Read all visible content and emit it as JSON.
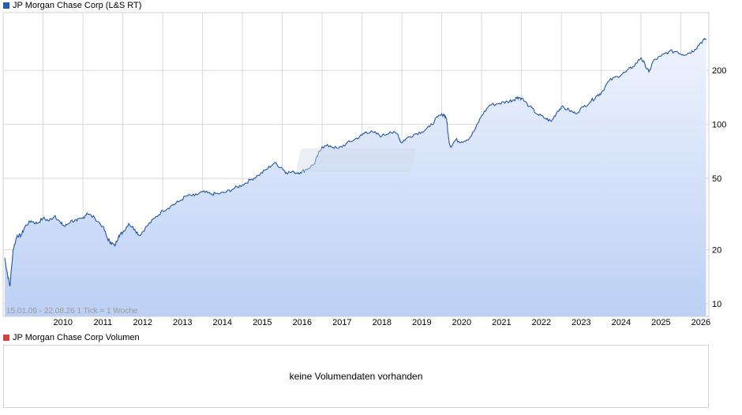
{
  "price_legend": {
    "label": "JP Morgan Chase Corp (L&S RT)",
    "color": "#2a5ab0"
  },
  "volume_legend": {
    "label": "JP Morgan Chase Corp Volumen",
    "color": "#cc4444"
  },
  "range_label": "15.01.09 - 22.08.26   1 Tick = 1 Woche",
  "volume_message": "keine Volumendaten vorhanden",
  "colors": {
    "line": "#2255a8",
    "fill_top": "#eef3fd",
    "fill_bottom": "#bcd0f5",
    "grid": "#d9d9d9"
  },
  "chart_data": {
    "type": "area",
    "title": "JP Morgan Chase Corp (L&S RT)",
    "x_range": [
      "15.01.09",
      "22.08.26"
    ],
    "y_scale": "log",
    "ylim": [
      8.5,
      420
    ],
    "y_ticks": [
      10,
      20,
      50,
      100,
      200
    ],
    "x_ticks": [
      "2010",
      "2011",
      "2012",
      "2013",
      "2014",
      "2015",
      "2016",
      "2017",
      "2018",
      "2019",
      "2020",
      "2021",
      "2022",
      "2023",
      "2024",
      "2025",
      "2026"
    ],
    "grid": true,
    "series": [
      {
        "values": [
          [
            2009.04,
            18
          ],
          [
            2009.1,
            15
          ],
          [
            2009.17,
            12.5
          ],
          [
            2009.25,
            20
          ],
          [
            2009.35,
            24
          ],
          [
            2009.45,
            24
          ],
          [
            2009.55,
            27
          ],
          [
            2009.7,
            29
          ],
          [
            2009.85,
            28
          ],
          [
            2010.0,
            30
          ],
          [
            2010.15,
            29
          ],
          [
            2010.3,
            31
          ],
          [
            2010.45,
            28
          ],
          [
            2010.55,
            27
          ],
          [
            2010.7,
            29
          ],
          [
            2010.85,
            29
          ],
          [
            2011.0,
            30
          ],
          [
            2011.1,
            32
          ],
          [
            2011.3,
            30
          ],
          [
            2011.5,
            27
          ],
          [
            2011.62,
            23
          ],
          [
            2011.7,
            22
          ],
          [
            2011.8,
            21
          ],
          [
            2011.9,
            24
          ],
          [
            2012.0,
            25
          ],
          [
            2012.15,
            28
          ],
          [
            2012.3,
            26
          ],
          [
            2012.42,
            24
          ],
          [
            2012.6,
            27
          ],
          [
            2012.8,
            30
          ],
          [
            2013.0,
            33
          ],
          [
            2013.2,
            35
          ],
          [
            2013.4,
            37
          ],
          [
            2013.6,
            40
          ],
          [
            2013.8,
            40
          ],
          [
            2014.0,
            42
          ],
          [
            2014.2,
            41
          ],
          [
            2014.4,
            41
          ],
          [
            2014.6,
            42
          ],
          [
            2014.8,
            44
          ],
          [
            2015.0,
            46
          ],
          [
            2015.2,
            49
          ],
          [
            2015.4,
            52
          ],
          [
            2015.6,
            56
          ],
          [
            2015.8,
            61
          ],
          [
            2016.0,
            57
          ],
          [
            2016.1,
            54
          ],
          [
            2016.3,
            54
          ],
          [
            2016.45,
            54
          ],
          [
            2016.6,
            56
          ],
          [
            2016.8,
            60
          ],
          [
            2016.9,
            68
          ],
          [
            2017.0,
            75
          ],
          [
            2017.2,
            76
          ],
          [
            2017.4,
            73
          ],
          [
            2017.6,
            78
          ],
          [
            2017.8,
            82
          ],
          [
            2018.0,
            87
          ],
          [
            2018.1,
            91
          ],
          [
            2018.3,
            90
          ],
          [
            2018.5,
            86
          ],
          [
            2018.7,
            91
          ],
          [
            2018.9,
            88
          ],
          [
            2018.98,
            79
          ],
          [
            2019.1,
            83
          ],
          [
            2019.3,
            88
          ],
          [
            2019.5,
            91
          ],
          [
            2019.7,
            97
          ],
          [
            2019.9,
            110
          ],
          [
            2020.05,
            114
          ],
          [
            2020.12,
            108
          ],
          [
            2020.17,
            84
          ],
          [
            2020.22,
            75
          ],
          [
            2020.35,
            82
          ],
          [
            2020.5,
            80
          ],
          [
            2020.7,
            84
          ],
          [
            2020.85,
            95
          ],
          [
            2021.0,
            112
          ],
          [
            2021.2,
            128
          ],
          [
            2021.45,
            131
          ],
          [
            2021.65,
            134
          ],
          [
            2021.8,
            137
          ],
          [
            2021.9,
            142
          ],
          [
            2022.0,
            140
          ],
          [
            2022.2,
            126
          ],
          [
            2022.4,
            114
          ],
          [
            2022.6,
            108
          ],
          [
            2022.75,
            104
          ],
          [
            2022.9,
            118
          ],
          [
            2023.0,
            125
          ],
          [
            2023.2,
            120
          ],
          [
            2023.35,
            115
          ],
          [
            2023.55,
            125
          ],
          [
            2023.75,
            135
          ],
          [
            2023.9,
            145
          ],
          [
            2024.0,
            150
          ],
          [
            2024.2,
            175
          ],
          [
            2024.4,
            185
          ],
          [
            2024.6,
            195
          ],
          [
            2024.8,
            210
          ],
          [
            2025.0,
            235
          ],
          [
            2025.1,
            215
          ],
          [
            2025.2,
            195
          ],
          [
            2025.3,
            225
          ],
          [
            2025.5,
            240
          ],
          [
            2025.7,
            255
          ],
          [
            2025.9,
            255
          ],
          [
            2026.05,
            245
          ],
          [
            2026.2,
            250
          ],
          [
            2026.35,
            262
          ],
          [
            2026.5,
            286
          ],
          [
            2026.63,
            300
          ]
        ]
      }
    ]
  }
}
